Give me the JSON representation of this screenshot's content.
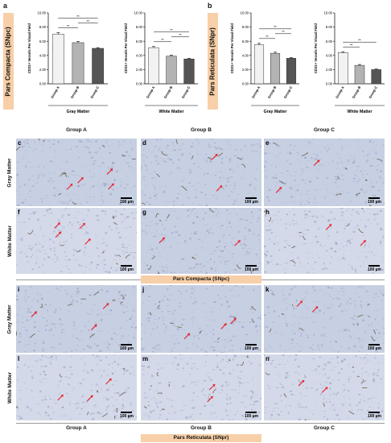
{
  "panel_letters": {
    "a": "a",
    "b": "b",
    "c": "c",
    "d": "d",
    "e": "e",
    "f": "f",
    "g": "g",
    "h": "h",
    "i": "i",
    "j": "j",
    "k": "k",
    "l": "l",
    "m": "m",
    "n": "n"
  },
  "side_labels": {
    "snpc": "Pars Compacta (SNpc)",
    "snpr": "Pars Reticulata (SNpr)"
  },
  "groups": [
    "Group A",
    "Group B",
    "Group C"
  ],
  "rows": {
    "gray": "Gray Matter",
    "white": "White Matter"
  },
  "banners": {
    "snpc": "Pars Compacta (SNpc)",
    "snpr": "Pars Reticulata (SNpr)"
  },
  "scale_text": "100 µm",
  "colors": {
    "bar_a": "#f2f2f2",
    "bar_b": "#b3b3b3",
    "bar_c": "#555555",
    "tissue": "#c7cfe2",
    "stain": "#6b5a4a",
    "arrow": "#e8212b",
    "side": "#f7cfa8"
  },
  "chart_data": [
    {
      "type": "bar",
      "id": "snpc-gray",
      "ylabel": "CD31+ Vessels Per Visual Field",
      "xlabel": "Gray Matter",
      "categories": [
        "Group A",
        "Group B",
        "Group C"
      ],
      "values": [
        7.0,
        5.8,
        5.0
      ],
      "errors": [
        0.2,
        0.15,
        0.1
      ],
      "ylim": [
        0,
        10
      ],
      "yticks": [
        "0.00",
        "2.00",
        "4.00",
        "6.00",
        "8.00",
        "10.00"
      ],
      "significance": [
        {
          "from": 0,
          "to": 1,
          "label": "**"
        },
        {
          "from": 0,
          "to": 2,
          "label": "**"
        },
        {
          "from": 1,
          "to": 2,
          "label": "**"
        }
      ]
    },
    {
      "type": "bar",
      "id": "snpc-white",
      "ylabel": "CD31+ Vessels Per Visual Field",
      "xlabel": "White Matter",
      "categories": [
        "Group A",
        "Group B",
        "Group C"
      ],
      "values": [
        5.1,
        3.9,
        3.5
      ],
      "errors": [
        0.15,
        0.12,
        0.1
      ],
      "ylim": [
        0,
        10
      ],
      "yticks": [
        "0.00",
        "2.00",
        "4.00",
        "6.00",
        "8.00",
        "10.00"
      ],
      "significance": [
        {
          "from": 0,
          "to": 1,
          "label": "**"
        },
        {
          "from": 0,
          "to": 2,
          "label": "**"
        },
        {
          "from": 1,
          "to": 2,
          "label": "**"
        }
      ]
    },
    {
      "type": "bar",
      "id": "snpr-gray",
      "ylabel": "CD31+ Vessels Per Visual Field",
      "xlabel": "Gray Matter",
      "categories": [
        "Group A",
        "Group B",
        "Group C"
      ],
      "values": [
        5.5,
        4.3,
        3.6
      ],
      "errors": [
        0.2,
        0.15,
        0.1
      ],
      "ylim": [
        0,
        10
      ],
      "yticks": [
        "0.00",
        "2.00",
        "4.00",
        "6.00",
        "8.00",
        "10.00"
      ],
      "significance": [
        {
          "from": 0,
          "to": 1,
          "label": "**"
        },
        {
          "from": 0,
          "to": 2,
          "label": "**"
        },
        {
          "from": 1,
          "to": 2,
          "label": "**"
        }
      ]
    },
    {
      "type": "bar",
      "id": "snpr-white",
      "ylabel": "CD31+ Vessels Per Visual Field",
      "xlabel": "White Matter",
      "categories": [
        "Group A",
        "Group B",
        "Group C"
      ],
      "values": [
        4.4,
        2.6,
        2.0
      ],
      "errors": [
        0.12,
        0.12,
        0.08
      ],
      "ylim": [
        0,
        10
      ],
      "yticks": [
        "0.00",
        "2.00",
        "4.00",
        "6.00",
        "8.00",
        "10.00"
      ],
      "significance": [
        {
          "from": 0,
          "to": 1,
          "label": "**"
        },
        {
          "from": 0,
          "to": 2,
          "label": "**"
        }
      ]
    }
  ]
}
